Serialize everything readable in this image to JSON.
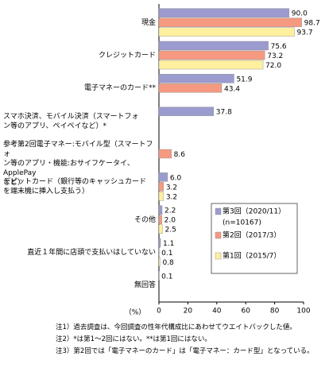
{
  "chart_data": {
    "type": "hbar",
    "categories": [
      "現金",
      "クレジットカード",
      "電子マネーのカード**",
      "スマホ決済、モバイル決済（スマートフォ\nン等のアプリ、ペイペイなど）*",
      "参考第2回電子マネー:モバイル型（スマートフォ\nン等のアプリ・機能:おサイフケータイ、ApplePay\nなど）",
      "デビットカード（銀行等のキャッシュカード\nを端末機に挿入し支払う）",
      "その他",
      "直近１年間に店頭で支払いはしていない",
      "無回答"
    ],
    "series": [
      {
        "name": "第3回（2020/11）",
        "color": "#9b9bcf",
        "values": [
          90.0,
          75.6,
          51.9,
          37.8,
          null,
          6.0,
          2.2,
          1.1,
          0.1
        ],
        "value_labels": [
          "90.0",
          "75.6",
          "51.9",
          "37.8",
          null,
          "6.0",
          "2.2",
          "1.1",
          "0.1"
        ]
      },
      {
        "name": "第2回（2017/3）",
        "color": "#f59a80",
        "values": [
          98.7,
          73.2,
          43.4,
          null,
          8.6,
          3.2,
          2.0,
          0.1,
          null
        ],
        "value_labels": [
          "98.7",
          "73.2",
          "43.4",
          null,
          "8.6",
          "3.2",
          "2.0",
          "0.1",
          null
        ]
      },
      {
        "name": "第1回（2015/7）",
        "color": "#fff0a0",
        "values": [
          93.7,
          72.0,
          null,
          null,
          null,
          3.2,
          2.5,
          0.8,
          null
        ],
        "value_labels": [
          "93.7",
          "72.0",
          null,
          null,
          null,
          "3.2",
          "2.5",
          "0.8",
          null
        ]
      }
    ],
    "legend_note": "(n=10167)",
    "xlim": [
      0,
      100
    ],
    "xticks": [
      0,
      20,
      40,
      60,
      80,
      100
    ],
    "xlabel": "（%）",
    "grid": false,
    "notes": [
      "注1）過去調査は、今回調査の性年代構成比にあわせてウエイトバックした値。",
      "注2）*は第1～2回にはない。**は第1回にはない。",
      "注3）第2回では「電子マネーのカード」は「電子マネー：カード型」となっている。"
    ]
  }
}
